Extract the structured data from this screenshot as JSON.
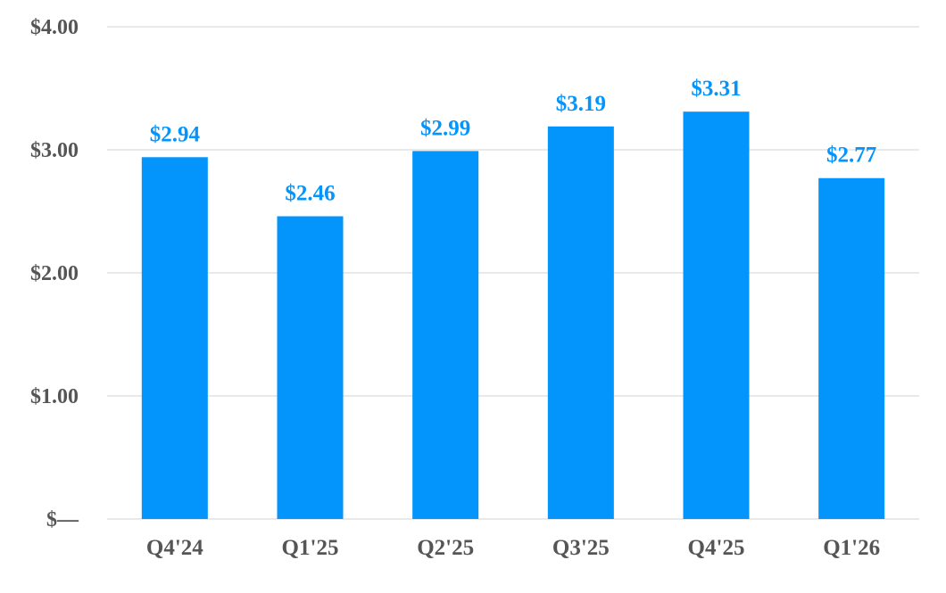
{
  "chart_data": {
    "type": "bar",
    "title": "",
    "xlabel": "",
    "ylabel": "",
    "categories": [
      "Q4'24",
      "Q1'25",
      "Q2'25",
      "Q3'25",
      "Q4'25",
      "Q1'26"
    ],
    "values": [
      2.94,
      2.46,
      2.99,
      3.19,
      3.31,
      2.77
    ],
    "value_labels": [
      "$2.94",
      "$2.46",
      "$2.99",
      "$3.19",
      "$3.31",
      "$2.77"
    ],
    "ylim": [
      0,
      4
    ],
    "yticks": [
      0,
      1,
      2,
      3,
      4
    ],
    "ytick_labels": [
      "$—",
      "$1.00",
      "$2.00",
      "$3.00",
      "$4.00"
    ],
    "grid": true,
    "legend": "none",
    "colors": {
      "bar": "#0394fc",
      "value_label": "#0394fc",
      "axis_text": "#555555",
      "gridline": "#e2e2e2"
    }
  }
}
